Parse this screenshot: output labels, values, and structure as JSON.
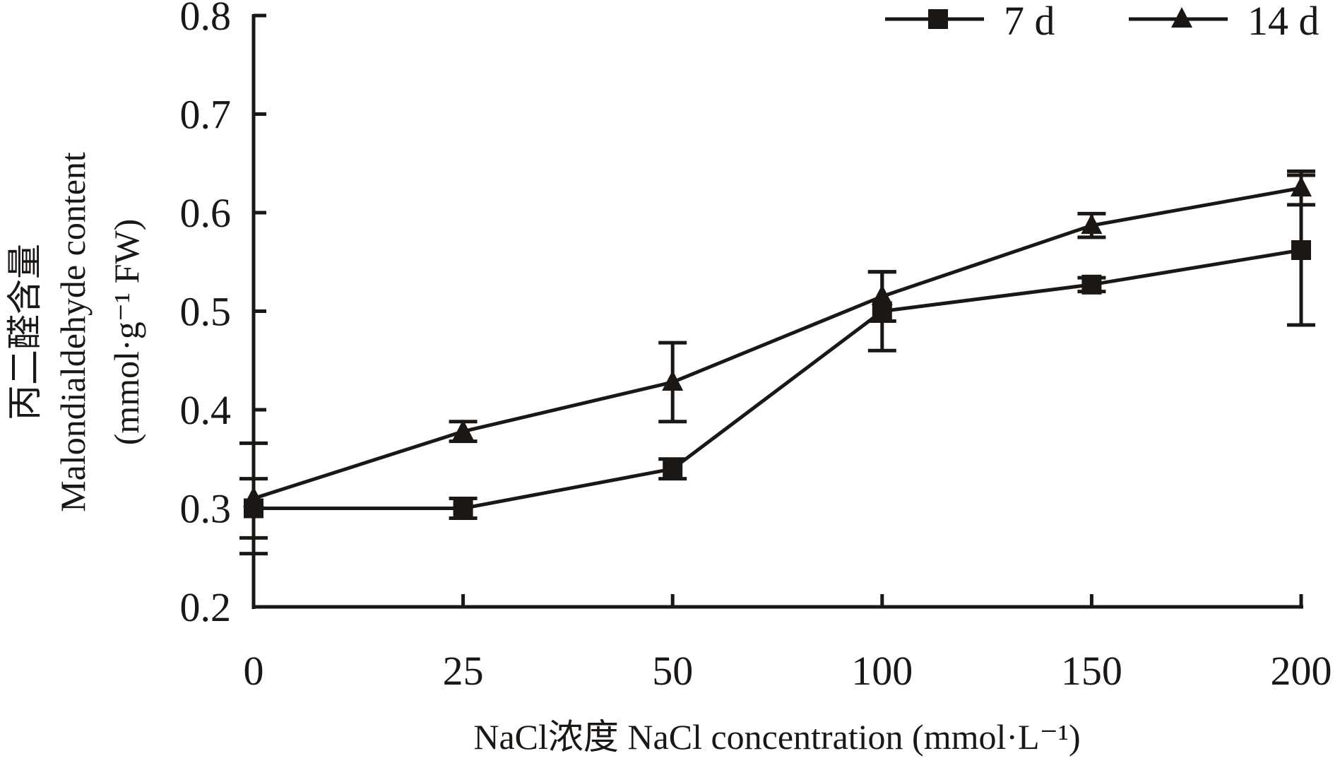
{
  "chart_data": {
    "type": "line",
    "xlabel": "NaCl浓度 NaCl concentration (mmol·L⁻¹)",
    "ylabel_lines": [
      "丙二醛含量",
      "Malondialdehyde content",
      "(mmol·g⁻¹ FW)"
    ],
    "categories": [
      "0",
      "25",
      "50",
      "100",
      "150",
      "200"
    ],
    "ylim": [
      0.2,
      0.8
    ],
    "yticks": [
      "0.2",
      "0.3",
      "0.4",
      "0.5",
      "0.6",
      "0.7",
      "0.8"
    ],
    "grid": false,
    "legend_position": "top-right",
    "series": [
      {
        "name": "7 d",
        "marker": "square",
        "values": [
          0.3,
          0.3,
          0.34,
          0.5,
          0.527,
          0.562
        ],
        "errors": [
          0.03,
          0.01,
          0.01,
          0.04,
          0.007,
          0.076
        ]
      },
      {
        "name": "14 d",
        "marker": "triangle",
        "values": [
          0.31,
          0.378,
          0.428,
          0.515,
          0.587,
          0.625
        ],
        "errors": [
          0.056,
          0.01,
          0.04,
          0.025,
          0.012,
          0.017
        ]
      }
    ],
    "color": "#1a1714"
  }
}
